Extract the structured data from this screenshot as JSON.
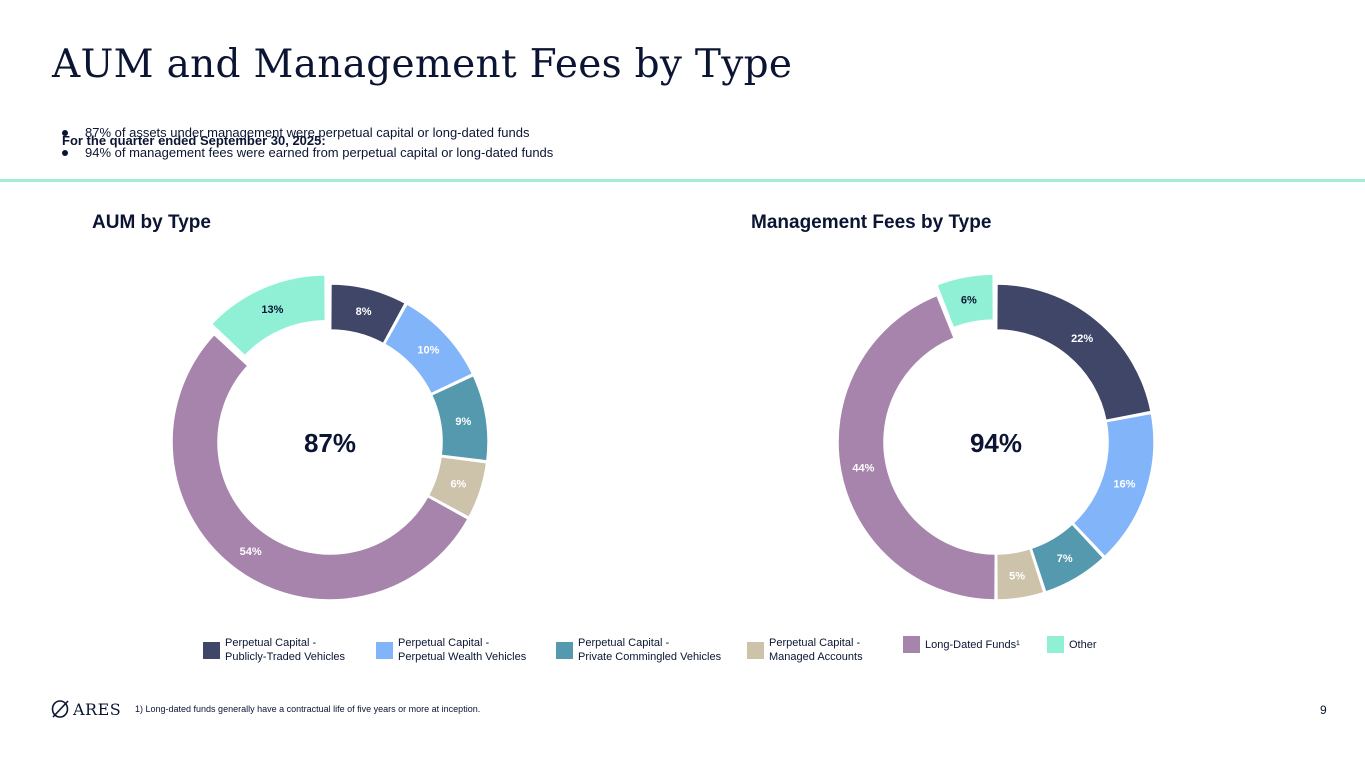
{
  "page": {
    "title": "AUM and Management Fees by Type",
    "subtitle": "For the quarter ended September 30, 2025:",
    "bullets": [
      "87% of assets under management were perpetual capital or long-dated funds",
      "94% of management fees were earned from perpetual capital or long-dated funds"
    ],
    "footnote": "1)  Long-dated funds generally have a contractual life of five years or more at inception.",
    "page_number": "9",
    "logo_text": "ARES"
  },
  "colors": {
    "navy": "#404667",
    "light_blue": "#82b4fa",
    "teal": "#5499ad",
    "tan": "#cdc2aa",
    "purple": "#a684ac",
    "mint": "#8ff0d6",
    "text": "#0b1533",
    "rule": "#a3ecd6"
  },
  "legend": [
    {
      "label": "Perpetual Capital -\nPublicly-Traded Vehicles",
      "color": "#404667"
    },
    {
      "label": "Perpetual Capital -\nPerpetual Wealth Vehicles",
      "color": "#82b4fa"
    },
    {
      "label": "Perpetual Capital -\nPrivate Commingled Vehicles",
      "color": "#5499ad"
    },
    {
      "label": "Perpetual Capital -\nManaged Accounts",
      "color": "#cdc2aa"
    },
    {
      "label": "Long-Dated Funds¹",
      "color": "#a684ac"
    },
    {
      "label": "Other",
      "color": "#8ff0d6"
    }
  ],
  "chart_data": [
    {
      "type": "pie",
      "title": "AUM by Type",
      "center_label": "87%",
      "categories": [
        "Perpetual Capital - Publicly-Traded Vehicles",
        "Perpetual Capital - Perpetual Wealth Vehicles",
        "Perpetual Capital - Private Commingled Vehicles",
        "Perpetual Capital - Managed Accounts",
        "Long-Dated Funds",
        "Other"
      ],
      "values": [
        8,
        10,
        9,
        6,
        54,
        13
      ],
      "labels": [
        "8%",
        "10%",
        "9%",
        "6%",
        "54%",
        "13%"
      ],
      "exploded": "Other"
    },
    {
      "type": "pie",
      "title": "Management Fees by Type",
      "center_label": "94%",
      "categories": [
        "Perpetual Capital - Publicly-Traded Vehicles",
        "Perpetual Capital - Perpetual Wealth Vehicles",
        "Perpetual Capital - Private Commingled Vehicles",
        "Perpetual Capital - Managed Accounts",
        "Long-Dated Funds",
        "Other"
      ],
      "values": [
        22,
        16,
        7,
        5,
        44,
        6
      ],
      "labels": [
        "22%",
        "16%",
        "7%",
        "5%",
        "44%",
        "6%"
      ],
      "exploded": "Other"
    }
  ]
}
